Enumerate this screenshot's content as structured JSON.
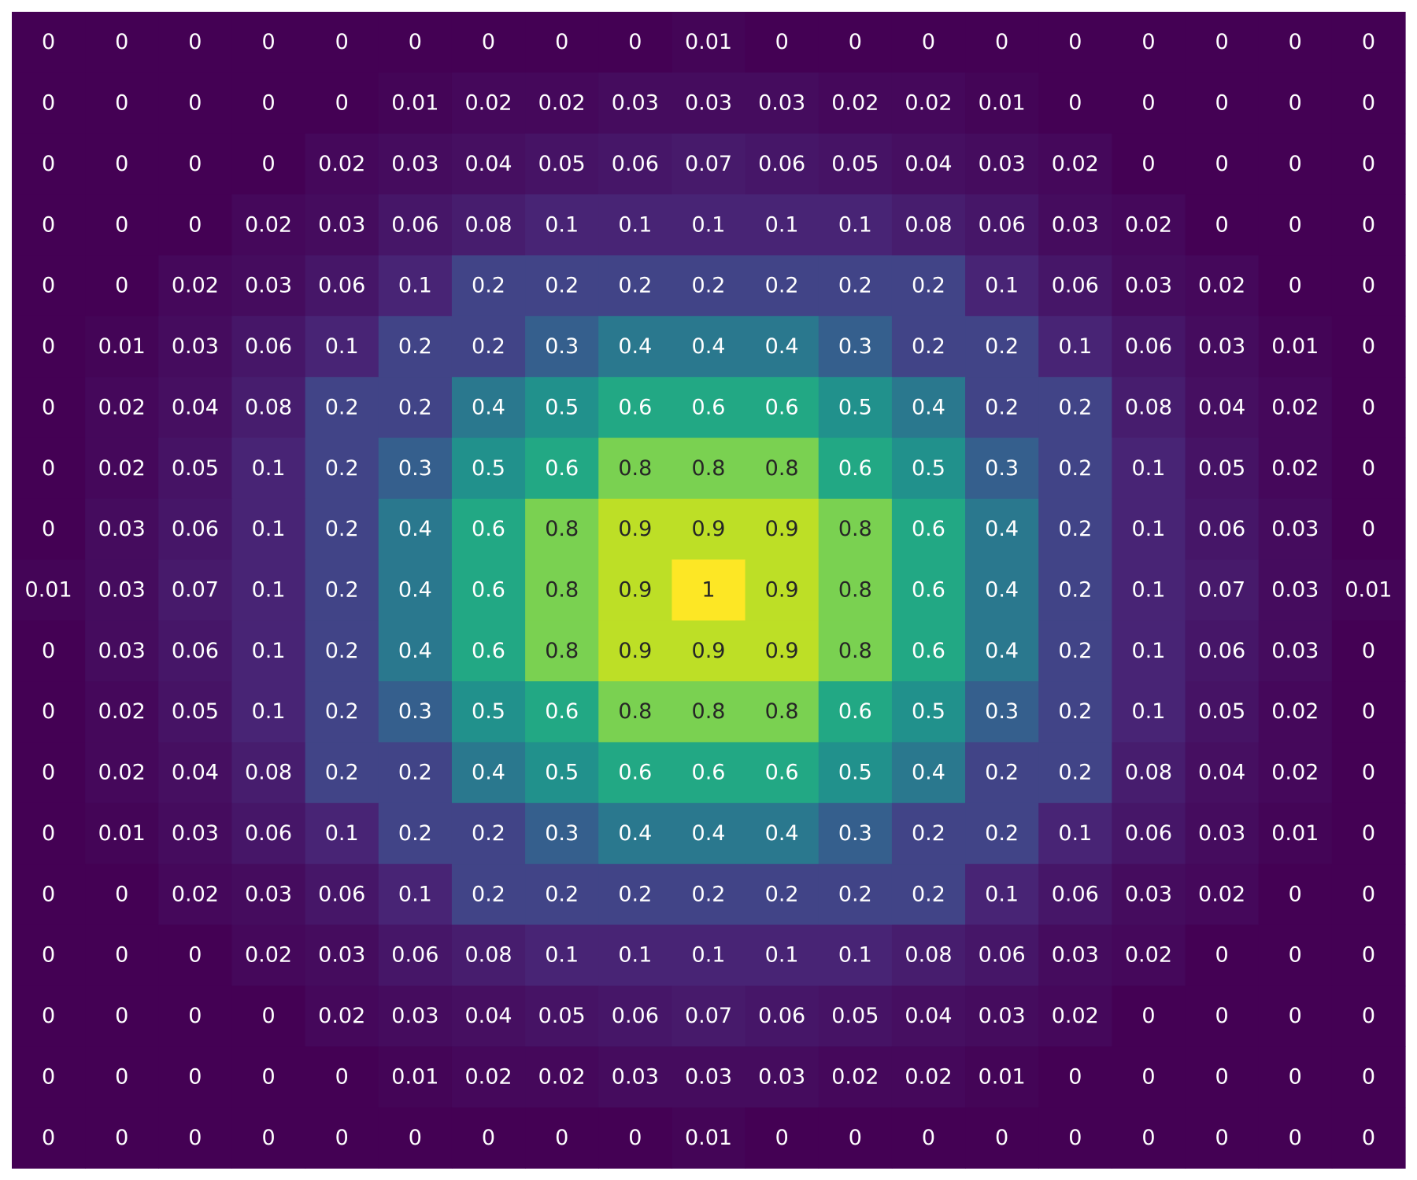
{
  "chart_data": {
    "type": "heatmap",
    "colormap": "viridis",
    "value_range": [
      0,
      1
    ],
    "text_color_light": "#ffffff",
    "text_color_dark": "#262626",
    "axes_visible": false,
    "grid": false,
    "values": [
      [
        "0",
        "0",
        "0",
        "0",
        "0",
        "0",
        "0",
        "0",
        "0",
        "0.01",
        "0",
        "0",
        "0",
        "0",
        "0",
        "0",
        "0",
        "0",
        "0"
      ],
      [
        "0",
        "0",
        "0",
        "0",
        "0",
        "0.01",
        "0.02",
        "0.02",
        "0.03",
        "0.03",
        "0.03",
        "0.02",
        "0.02",
        "0.01",
        "0",
        "0",
        "0",
        "0",
        "0"
      ],
      [
        "0",
        "0",
        "0",
        "0",
        "0.02",
        "0.03",
        "0.04",
        "0.05",
        "0.06",
        "0.07",
        "0.06",
        "0.05",
        "0.04",
        "0.03",
        "0.02",
        "0",
        "0",
        "0",
        "0"
      ],
      [
        "0",
        "0",
        "0",
        "0.02",
        "0.03",
        "0.06",
        "0.08",
        "0.1",
        "0.1",
        "0.1",
        "0.1",
        "0.1",
        "0.08",
        "0.06",
        "0.03",
        "0.02",
        "0",
        "0",
        "0"
      ],
      [
        "0",
        "0",
        "0.02",
        "0.03",
        "0.06",
        "0.1",
        "0.2",
        "0.2",
        "0.2",
        "0.2",
        "0.2",
        "0.2",
        "0.2",
        "0.1",
        "0.06",
        "0.03",
        "0.02",
        "0",
        "0"
      ],
      [
        "0",
        "0.01",
        "0.03",
        "0.06",
        "0.1",
        "0.2",
        "0.2",
        "0.3",
        "0.4",
        "0.4",
        "0.4",
        "0.3",
        "0.2",
        "0.2",
        "0.1",
        "0.06",
        "0.03",
        "0.01",
        "0"
      ],
      [
        "0",
        "0.02",
        "0.04",
        "0.08",
        "0.2",
        "0.2",
        "0.4",
        "0.5",
        "0.6",
        "0.6",
        "0.6",
        "0.5",
        "0.4",
        "0.2",
        "0.2",
        "0.08",
        "0.04",
        "0.02",
        "0"
      ],
      [
        "0",
        "0.02",
        "0.05",
        "0.1",
        "0.2",
        "0.3",
        "0.5",
        "0.6",
        "0.8",
        "0.8",
        "0.8",
        "0.6",
        "0.5",
        "0.3",
        "0.2",
        "0.1",
        "0.05",
        "0.02",
        "0"
      ],
      [
        "0",
        "0.03",
        "0.06",
        "0.1",
        "0.2",
        "0.4",
        "0.6",
        "0.8",
        "0.9",
        "0.9",
        "0.9",
        "0.8",
        "0.6",
        "0.4",
        "0.2",
        "0.1",
        "0.06",
        "0.03",
        "0"
      ],
      [
        "0.01",
        "0.03",
        "0.07",
        "0.1",
        "0.2",
        "0.4",
        "0.6",
        "0.8",
        "0.9",
        "1",
        "0.9",
        "0.8",
        "0.6",
        "0.4",
        "0.2",
        "0.1",
        "0.07",
        "0.03",
        "0.01"
      ],
      [
        "0",
        "0.03",
        "0.06",
        "0.1",
        "0.2",
        "0.4",
        "0.6",
        "0.8",
        "0.9",
        "0.9",
        "0.9",
        "0.8",
        "0.6",
        "0.4",
        "0.2",
        "0.1",
        "0.06",
        "0.03",
        "0"
      ],
      [
        "0",
        "0.02",
        "0.05",
        "0.1",
        "0.2",
        "0.3",
        "0.5",
        "0.6",
        "0.8",
        "0.8",
        "0.8",
        "0.6",
        "0.5",
        "0.3",
        "0.2",
        "0.1",
        "0.05",
        "0.02",
        "0"
      ],
      [
        "0",
        "0.02",
        "0.04",
        "0.08",
        "0.2",
        "0.2",
        "0.4",
        "0.5",
        "0.6",
        "0.6",
        "0.6",
        "0.5",
        "0.4",
        "0.2",
        "0.2",
        "0.08",
        "0.04",
        "0.02",
        "0"
      ],
      [
        "0",
        "0.01",
        "0.03",
        "0.06",
        "0.1",
        "0.2",
        "0.2",
        "0.3",
        "0.4",
        "0.4",
        "0.4",
        "0.3",
        "0.2",
        "0.2",
        "0.1",
        "0.06",
        "0.03",
        "0.01",
        "0"
      ],
      [
        "0",
        "0",
        "0.02",
        "0.03",
        "0.06",
        "0.1",
        "0.2",
        "0.2",
        "0.2",
        "0.2",
        "0.2",
        "0.2",
        "0.2",
        "0.1",
        "0.06",
        "0.03",
        "0.02",
        "0",
        "0"
      ],
      [
        "0",
        "0",
        "0",
        "0.02",
        "0.03",
        "0.06",
        "0.08",
        "0.1",
        "0.1",
        "0.1",
        "0.1",
        "0.1",
        "0.08",
        "0.06",
        "0.03",
        "0.02",
        "0",
        "0",
        "0"
      ],
      [
        "0",
        "0",
        "0",
        "0",
        "0.02",
        "0.03",
        "0.04",
        "0.05",
        "0.06",
        "0.07",
        "0.06",
        "0.05",
        "0.04",
        "0.03",
        "0.02",
        "0",
        "0",
        "0",
        "0"
      ],
      [
        "0",
        "0",
        "0",
        "0",
        "0",
        "0.01",
        "0.02",
        "0.02",
        "0.03",
        "0.03",
        "0.03",
        "0.02",
        "0.02",
        "0.01",
        "0",
        "0",
        "0",
        "0",
        "0"
      ],
      [
        "0",
        "0",
        "0",
        "0",
        "0",
        "0",
        "0",
        "0",
        "0",
        "0.01",
        "0",
        "0",
        "0",
        "0",
        "0",
        "0",
        "0",
        "0",
        "0"
      ]
    ]
  }
}
